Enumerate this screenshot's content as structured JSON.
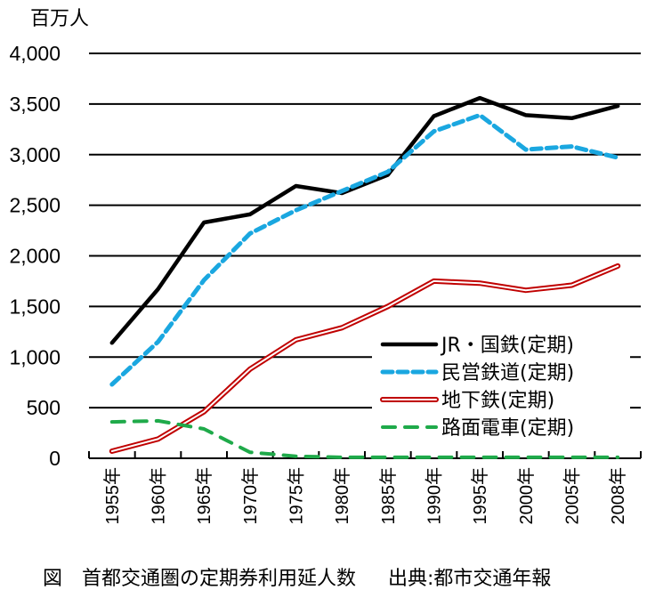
{
  "chart_data": {
    "type": "line",
    "title": "",
    "ylabel": "百万人",
    "xlabel": "",
    "ylim": [
      0,
      4000
    ],
    "yticks": [
      0,
      500,
      1000,
      1500,
      2000,
      2500,
      3000,
      3500,
      4000
    ],
    "ytick_labels": [
      "0",
      "500",
      "1,000",
      "1,500",
      "2,000",
      "2,500",
      "3,000",
      "3,500",
      "4,000"
    ],
    "grid": true,
    "legend_position": "center-right",
    "categories": [
      "1955年",
      "1960年",
      "1965年",
      "1970年",
      "1975年",
      "1980年",
      "1985年",
      "1990年",
      "1995年",
      "2000年",
      "2005年",
      "2008年"
    ],
    "series": [
      {
        "name": "JR・国鉄(定期)",
        "color": "#000000",
        "style": "solid",
        "values": [
          1140,
          1670,
          2330,
          2410,
          2690,
          2620,
          2800,
          3380,
          3560,
          3390,
          3360,
          3480
        ]
      },
      {
        "name": "民営鉄道(定期)",
        "color": "#1aa7e0",
        "style": "dotted",
        "values": [
          730,
          1150,
          1760,
          2220,
          2450,
          2640,
          2830,
          3230,
          3390,
          3050,
          3080,
          2970
        ]
      },
      {
        "name": "地下鉄(定期)",
        "color": "#c00000",
        "style": "double",
        "values": [
          70,
          190,
          460,
          880,
          1170,
          1290,
          1500,
          1750,
          1730,
          1660,
          1710,
          1900
        ]
      },
      {
        "name": "路面電車(定期)",
        "color": "#1faa4a",
        "style": "dashed",
        "values": [
          360,
          370,
          290,
          60,
          20,
          10,
          10,
          10,
          10,
          10,
          10,
          10
        ]
      }
    ]
  },
  "caption": {
    "title": "図　首都交通圏の定期券利用延人数",
    "source": "出典:都市交通年報"
  }
}
